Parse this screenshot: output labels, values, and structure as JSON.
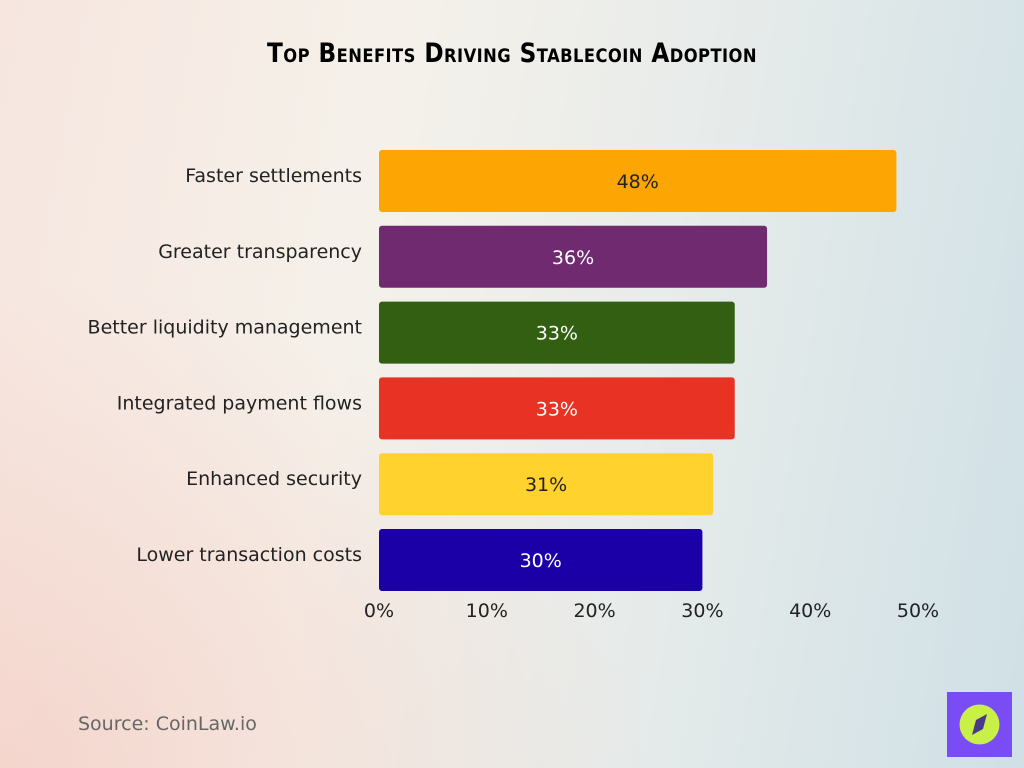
{
  "chart_data": {
    "type": "bar",
    "orientation": "horizontal",
    "title": "Top Benefits Driving Stablecoin Adoption",
    "categories": [
      "Faster settlements",
      "Greater transparency",
      "Better liquidity management",
      "Integrated payment flows",
      "Enhanced security",
      "Lower transaction costs"
    ],
    "values": [
      48,
      36,
      33,
      33,
      31,
      30
    ],
    "data_labels": [
      "48%",
      "36%",
      "33%",
      "33%",
      "31%",
      "30%"
    ],
    "colors": [
      "#fca503",
      "#6f2a70",
      "#325f12",
      "#e83224",
      "#ffd22e",
      "#1b00a8"
    ],
    "label_colors": [
      "#222222",
      "#ffffff",
      "#ffffff",
      "#ffffff",
      "#222222",
      "#ffffff"
    ],
    "xlim": [
      0,
      50
    ],
    "xticks": [
      "0%",
      "10%",
      "20%",
      "30%",
      "40%",
      "50%"
    ],
    "xtick_values": [
      0,
      10,
      20,
      30,
      40,
      50
    ],
    "grid": false,
    "xlabel": "",
    "ylabel": ""
  },
  "source": "Source: CoinLaw.io",
  "logo": {
    "icon": "compass-icon",
    "background": "#7a4cf5",
    "foreground": "#c8f046"
  }
}
